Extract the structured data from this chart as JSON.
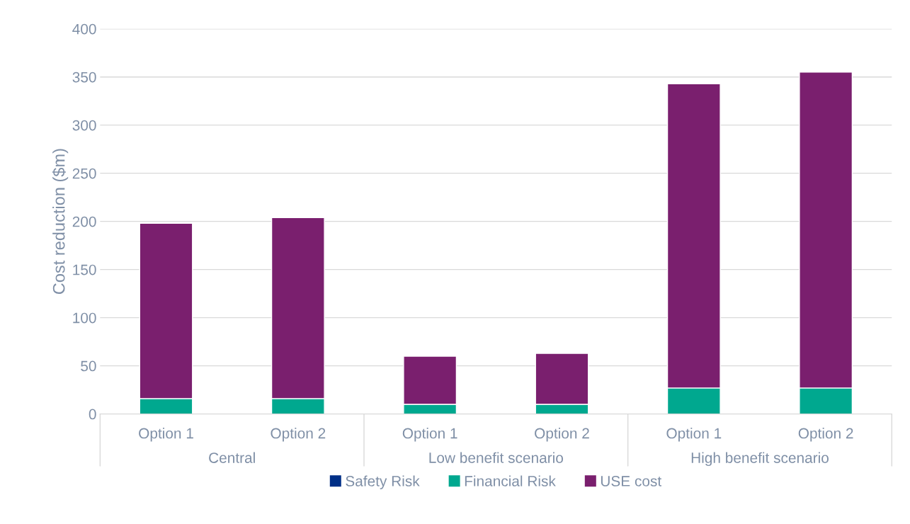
{
  "chart_data": {
    "type": "bar",
    "stacked": true,
    "ylabel": "Cost reduction ($m)",
    "categories": [
      "Option 1",
      "Option 2",
      "Option 1",
      "Option 2",
      "Option 1",
      "Option 2"
    ],
    "annotations": [
      "Central",
      "Low benefit scenario",
      "High benefit scenario"
    ],
    "series": [
      {
        "name": "Safety Risk",
        "color": "#002f87",
        "values": [
          0,
          0,
          0,
          0,
          0,
          0
        ]
      },
      {
        "name": "Financial Risk",
        "color": "#00a88f",
        "values": [
          16,
          16,
          10,
          10,
          27,
          27
        ]
      },
      {
        "name": "USE cost",
        "color": "#7a1f6e",
        "values": [
          182,
          188,
          50,
          53,
          316,
          328
        ]
      }
    ],
    "ylim": [
      0,
      400
    ],
    "yticks": [
      0,
      50,
      100,
      150,
      200,
      250,
      300,
      350,
      400
    ],
    "grid": "y",
    "legend": "bottom"
  }
}
